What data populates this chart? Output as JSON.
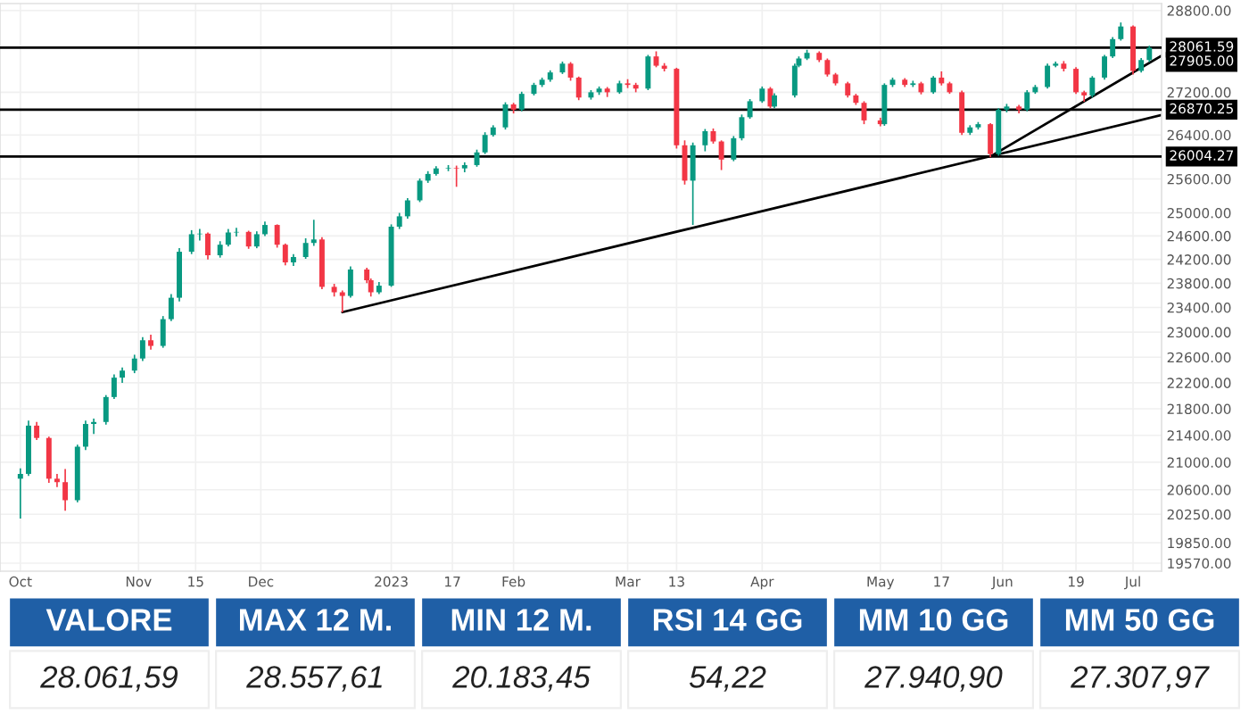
{
  "chart_data": [
    {
      "type": "candlestick",
      "x": [
        "2022-10-03",
        "2022-10-05",
        "2022-10-07",
        "2022-10-10",
        "2022-10-12",
        "2022-10-14",
        "2022-10-17",
        "2022-10-19",
        "2022-10-21",
        "2022-10-24",
        "2022-10-26",
        "2022-10-28",
        "2022-10-31",
        "2022-11-02",
        "2022-11-04",
        "2022-11-07",
        "2022-11-09",
        "2022-11-11",
        "2022-11-14",
        "2022-11-16",
        "2022-11-18",
        "2022-11-21",
        "2022-11-23",
        "2022-11-25",
        "2022-11-28",
        "2022-11-30",
        "2022-12-02",
        "2022-12-05",
        "2022-12-07",
        "2022-12-09",
        "2022-12-12",
        "2022-12-14",
        "2022-12-16",
        "2022-12-19",
        "2022-12-21",
        "2022-12-23",
        "2022-12-27",
        "2022-12-28",
        "2022-12-30",
        "2023-01-02",
        "2023-01-04",
        "2023-01-06",
        "2023-01-09",
        "2023-01-11",
        "2023-01-13",
        "2023-01-16",
        "2023-01-18",
        "2023-01-20",
        "2023-01-23",
        "2023-01-25",
        "2023-01-27",
        "2023-01-30",
        "2023-02-01",
        "2023-02-03",
        "2023-02-06",
        "2023-02-08",
        "2023-02-10",
        "2023-02-13",
        "2023-02-15",
        "2023-02-17",
        "2023-02-20",
        "2023-02-22",
        "2023-02-24",
        "2023-02-27",
        "2023-03-01",
        "2023-03-03",
        "2023-03-06",
        "2023-03-08",
        "2023-03-10",
        "2023-03-13",
        "2023-03-15",
        "2023-03-17",
        "2023-03-20",
        "2023-03-22",
        "2023-03-24",
        "2023-03-27",
        "2023-03-29",
        "2023-03-31",
        "2023-04-03",
        "2023-04-05",
        "2023-04-06",
        "2023-04-11",
        "2023-04-12",
        "2023-04-14",
        "2023-04-17",
        "2023-04-19",
        "2023-04-21",
        "2023-04-24",
        "2023-04-26",
        "2023-04-28",
        "2023-05-02",
        "2023-05-03",
        "2023-05-05",
        "2023-05-08",
        "2023-05-10",
        "2023-05-12",
        "2023-05-15",
        "2023-05-17",
        "2023-05-19",
        "2023-05-22",
        "2023-05-24",
        "2023-05-26",
        "2023-05-29",
        "2023-05-31",
        "2023-06-02",
        "2023-06-05",
        "2023-06-07",
        "2023-06-09",
        "2023-06-12",
        "2023-06-14",
        "2023-06-16",
        "2023-06-19",
        "2023-06-21",
        "2023-06-23",
        "2023-06-26",
        "2023-06-28",
        "2023-06-30",
        "2023-07-03",
        "2023-07-05",
        "2023-07-07"
      ],
      "ohlc": [
        [
          20760,
          20910,
          20190,
          20830
        ],
        [
          20830,
          21620,
          20800,
          21545
        ],
        [
          21545,
          21600,
          21330,
          21360
        ],
        [
          21360,
          21380,
          20700,
          20760
        ],
        [
          20760,
          20830,
          20640,
          20710
        ],
        [
          20710,
          20900,
          20300,
          20450
        ],
        [
          20450,
          21260,
          20420,
          21230
        ],
        [
          21230,
          21620,
          21180,
          21570
        ],
        [
          21570,
          21650,
          21420,
          21600
        ],
        [
          21600,
          22010,
          21560,
          21980
        ],
        [
          21980,
          22330,
          21950,
          22280
        ],
        [
          22280,
          22440,
          22200,
          22390
        ],
        [
          22390,
          22640,
          22350,
          22580
        ],
        [
          22580,
          22920,
          22540,
          22870
        ],
        [
          22870,
          22960,
          22720,
          22780
        ],
        [
          22780,
          23260,
          22750,
          23210
        ],
        [
          23210,
          23620,
          23180,
          23560
        ],
        [
          23560,
          24390,
          23500,
          24330
        ],
        [
          24330,
          24700,
          24290,
          24630
        ],
        [
          24630,
          24720,
          24520,
          24640
        ],
        [
          24640,
          24660,
          24200,
          24270
        ],
        [
          24270,
          24510,
          24230,
          24450
        ],
        [
          24450,
          24720,
          24420,
          24660
        ],
        [
          24660,
          24740,
          24590,
          24670
        ],
        [
          24670,
          24690,
          24380,
          24420
        ],
        [
          24420,
          24680,
          24390,
          24630
        ],
        [
          24630,
          24850,
          24600,
          24790
        ],
        [
          24790,
          24800,
          24400,
          24450
        ],
        [
          24450,
          24470,
          24100,
          24150
        ],
        [
          24150,
          24290,
          24090,
          24240
        ],
        [
          24240,
          24560,
          24210,
          24480
        ],
        [
          24480,
          24880,
          24430,
          24540
        ],
        [
          24540,
          24580,
          23700,
          23740
        ],
        [
          23740,
          23790,
          23580,
          23650
        ],
        [
          23650,
          23680,
          23320,
          23590
        ],
        [
          23590,
          24080,
          23560,
          24030
        ],
        [
          24030,
          24060,
          23800,
          23850
        ],
        [
          23850,
          23880,
          23580,
          23650
        ],
        [
          23650,
          23820,
          23620,
          23760
        ],
        [
          23760,
          24800,
          23740,
          24760
        ],
        [
          24760,
          25000,
          24720,
          24940
        ],
        [
          24940,
          25260,
          24900,
          25220
        ],
        [
          25220,
          25610,
          25190,
          25570
        ],
        [
          25570,
          25740,
          25530,
          25690
        ],
        [
          25690,
          25830,
          25660,
          25790
        ],
        [
          25790,
          25850,
          25740,
          25800
        ],
        [
          25800,
          25840,
          25460,
          25790
        ],
        [
          25790,
          25900,
          25720,
          25850
        ],
        [
          25850,
          26130,
          25820,
          26080
        ],
        [
          26080,
          26450,
          26050,
          26400
        ],
        [
          26400,
          26580,
          26370,
          26540
        ],
        [
          26540,
          27010,
          26500,
          26970
        ],
        [
          26970,
          27000,
          26800,
          26870
        ],
        [
          26870,
          27210,
          26840,
          27170
        ],
        [
          27170,
          27380,
          27140,
          27340
        ],
        [
          27340,
          27480,
          27300,
          27440
        ],
        [
          27440,
          27620,
          27400,
          27580
        ],
        [
          27580,
          27790,
          27550,
          27750
        ],
        [
          27750,
          27780,
          27420,
          27480
        ],
        [
          27480,
          27500,
          27050,
          27100
        ],
        [
          27100,
          27240,
          27060,
          27200
        ],
        [
          27200,
          27310,
          27150,
          27270
        ],
        [
          27270,
          27300,
          27110,
          27200
        ],
        [
          27200,
          27420,
          27170,
          27370
        ],
        [
          27370,
          27450,
          27280,
          27340
        ],
        [
          27340,
          27380,
          27200,
          27270
        ],
        [
          27270,
          27920,
          27240,
          27890
        ],
        [
          27890,
          27990,
          27680,
          27710
        ],
        [
          27710,
          27760,
          27600,
          27650
        ],
        [
          27650,
          27670,
          26150,
          26210
        ],
        [
          26210,
          26300,
          25500,
          25570
        ],
        [
          25570,
          26260,
          24790,
          26210
        ],
        [
          26210,
          26510,
          26100,
          26470
        ],
        [
          26470,
          26520,
          26240,
          26280
        ],
        [
          26280,
          26300,
          25760,
          25950
        ],
        [
          25950,
          26380,
          25920,
          26340
        ],
        [
          26340,
          26780,
          26300,
          26730
        ],
        [
          26730,
          27070,
          26700,
          27030
        ],
        [
          27030,
          27310,
          27000,
          27270
        ],
        [
          27270,
          27300,
          26900,
          26930
        ],
        [
          26930,
          27180,
          26900,
          27140
        ],
        [
          27140,
          27750,
          27100,
          27710
        ],
        [
          27710,
          27890,
          27680,
          27850
        ],
        [
          27850,
          28020,
          27820,
          27960
        ],
        [
          27960,
          27990,
          27780,
          27820
        ],
        [
          27820,
          27850,
          27500,
          27540
        ],
        [
          27540,
          27570,
          27330,
          27370
        ],
        [
          27370,
          27400,
          27100,
          27140
        ],
        [
          27140,
          27170,
          26960,
          27000
        ],
        [
          27000,
          27030,
          26600,
          26670
        ],
        [
          26670,
          26720,
          26560,
          26600
        ],
        [
          26600,
          27370,
          26570,
          27340
        ],
        [
          27340,
          27480,
          27300,
          27440
        ],
        [
          27440,
          27470,
          27300,
          27340
        ],
        [
          27340,
          27420,
          27300,
          27370
        ],
        [
          27370,
          27400,
          27160,
          27200
        ],
        [
          27200,
          27510,
          27170,
          27480
        ],
        [
          27480,
          27600,
          27330,
          27370
        ],
        [
          27370,
          27400,
          27170,
          27200
        ],
        [
          27200,
          27230,
          26400,
          26440
        ],
        [
          26440,
          26580,
          26400,
          26540
        ],
        [
          26540,
          26640,
          26500,
          26600
        ],
        [
          26600,
          26620,
          25990,
          26050
        ],
        [
          26050,
          26900,
          26020,
          26870
        ],
        [
          26870,
          26980,
          26820,
          26930
        ],
        [
          26930,
          26960,
          26800,
          26870
        ],
        [
          26870,
          27240,
          26840,
          27200
        ],
        [
          27200,
          27340,
          27170,
          27300
        ],
        [
          27300,
          27750,
          27270,
          27710
        ],
        [
          27710,
          27790,
          27680,
          27750
        ],
        [
          27750,
          27800,
          27600,
          27650
        ],
        [
          27650,
          27680,
          27170,
          27200
        ],
        [
          27200,
          27230,
          27020,
          27140
        ],
        [
          27140,
          27510,
          27100,
          27480
        ],
        [
          27480,
          27920,
          27440,
          27890
        ],
        [
          27890,
          28270,
          27860,
          28230
        ],
        [
          28230,
          28560,
          28200,
          28480
        ],
        [
          28480,
          28500,
          27540,
          27610
        ],
        [
          27610,
          27860,
          27580,
          27820
        ],
        [
          27820,
          28100,
          27780,
          28061.59
        ]
      ],
      "series": [
        {
          "type": "line",
          "color": "#000000",
          "x": [
            "2022-12-21",
            "2023-07-10"
          ],
          "values": [
            23324,
            26770
          ]
        },
        {
          "type": "line",
          "color": "#000000",
          "x": [
            "2023-05-29",
            "2023-07-10"
          ],
          "values": [
            26004.27,
            27905
          ],
          "value_labels": [
            null,
            "27905.00"
          ]
        }
      ],
      "ref_lines": [
        {
          "axis": "y",
          "value": 28061.59,
          "label": "28061.59",
          "color": "#000000"
        },
        {
          "axis": "y",
          "value": 26870.25,
          "label": "26870.25",
          "color": "#000000"
        },
        {
          "axis": "y",
          "value": 26004.27,
          "label": "26004.27",
          "color": "#000000"
        }
      ],
      "log": "y",
      "grid": true,
      "xlim": [
        "2022-09-28",
        "2023-07-10"
      ],
      "xticks": [
        {
          "value": "2022-10-03",
          "label": "Oct"
        },
        {
          "value": "2022-11-01",
          "label": "Nov"
        },
        {
          "value": "2022-11-15",
          "label": "15"
        },
        {
          "value": "2022-12-01",
          "label": "Dec"
        },
        {
          "value": "2023-01-02",
          "label": "2023"
        },
        {
          "value": "2023-01-17",
          "label": "17"
        },
        {
          "value": "2023-02-01",
          "label": "Feb"
        },
        {
          "value": "2023-03-01",
          "label": "Mar"
        },
        {
          "value": "2023-03-13",
          "label": "13"
        },
        {
          "value": "2023-04-03",
          "label": "Apr"
        },
        {
          "value": "2023-05-02",
          "label": "May"
        },
        {
          "value": "2023-05-17",
          "label": "17"
        },
        {
          "value": "2023-06-01",
          "label": "Jun"
        },
        {
          "value": "2023-06-19",
          "label": "19"
        },
        {
          "value": "2023-07-03",
          "label": "Jul"
        }
      ],
      "ylim": [
        19460,
        28940
      ],
      "yticks": [
        {
          "value": 28800,
          "label": "28800.00"
        },
        {
          "value": 27200,
          "label": "27200.00"
        },
        {
          "value": 26400,
          "label": "26400.00"
        },
        {
          "value": 25600,
          "label": "25600.00"
        },
        {
          "value": 25000,
          "label": "25000.00"
        },
        {
          "value": 24600,
          "label": "24600.00"
        },
        {
          "value": 24200,
          "label": "24200.00"
        },
        {
          "value": 23800,
          "label": "23800.00"
        },
        {
          "value": 23400,
          "label": "23400.00"
        },
        {
          "value": 23000,
          "label": "23000.00"
        },
        {
          "value": 22600,
          "label": "22600.00"
        },
        {
          "value": 22200,
          "label": "22200.00"
        },
        {
          "value": 21800,
          "label": "21800.00"
        },
        {
          "value": 21400,
          "label": "21400.00"
        },
        {
          "value": 21000,
          "label": "21000.00"
        },
        {
          "value": 20600,
          "label": "20600.00"
        },
        {
          "value": 20250,
          "label": "20250.00"
        },
        {
          "value": 19850,
          "label": "19850.00"
        },
        {
          "value": 19570,
          "label": "19570.00"
        }
      ]
    },
    {
      "type": "other",
      "annotations": [
        "VALORE",
        "MAX 12 M.",
        "MIN 12 M.",
        "RSI 14 GG",
        "MM 10 GG",
        "MM 50 GG",
        "28.061,59",
        "28.557,61",
        "20.183,45",
        "54,22",
        "27.940,90",
        "27.307,97"
      ]
    }
  ]
}
